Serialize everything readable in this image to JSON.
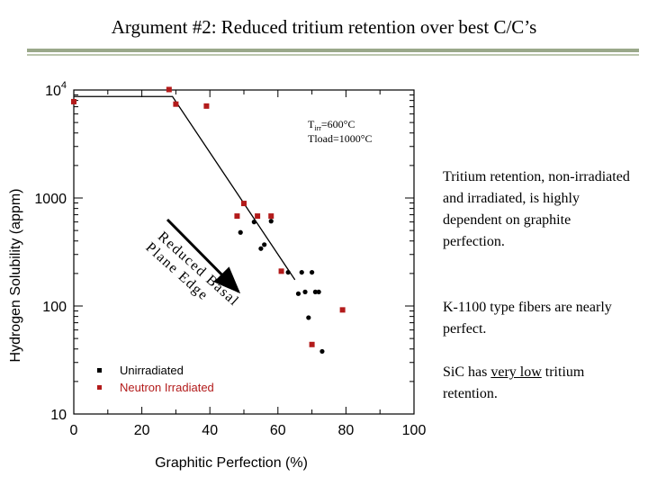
{
  "slide_title": "Argument #2: Reduced tritium retention over best C/C’s",
  "chart_data": {
    "type": "scatter",
    "xlabel": "Graphitic Perfection (%)",
    "ylabel": "Hydrogen Solubility (appm)",
    "xlim": [
      0,
      100
    ],
    "ylim": [
      10,
      10000
    ],
    "yscale": "log",
    "x_ticks": [
      "0",
      "20",
      "40",
      "60",
      "80",
      "100"
    ],
    "y_ticks": [
      {
        "value": 10,
        "label": "10"
      },
      {
        "value": 100,
        "label": "100"
      },
      {
        "value": 1000,
        "label": "1000"
      },
      {
        "value": 10000,
        "label": "10",
        "exponent": "4"
      }
    ],
    "conditions": {
      "line1_main": "T",
      "line1_sub": "irr",
      "line1_rest": "=600°C",
      "line2": "Tload=1000°C"
    },
    "legend_placement": "bottom-left",
    "series": [
      {
        "name": "Unirradiated",
        "color": "#000000",
        "points": [
          {
            "x": 49,
            "y": 480
          },
          {
            "x": 53,
            "y": 600
          },
          {
            "x": 55,
            "y": 340
          },
          {
            "x": 56,
            "y": 370
          },
          {
            "x": 58,
            "y": 610
          },
          {
            "x": 61,
            "y": 210
          },
          {
            "x": 63,
            "y": 205
          },
          {
            "x": 66,
            "y": 130
          },
          {
            "x": 67,
            "y": 205
          },
          {
            "x": 68,
            "y": 135
          },
          {
            "x": 69,
            "y": 78
          },
          {
            "x": 70,
            "y": 205
          },
          {
            "x": 71,
            "y": 135
          },
          {
            "x": 72,
            "y": 135
          },
          {
            "x": 73,
            "y": 38
          }
        ]
      },
      {
        "name": "Neutron Irradiated",
        "color": "#b31b1b",
        "points": [
          {
            "x": 0,
            "y": 7800
          },
          {
            "x": 28,
            "y": 10100
          },
          {
            "x": 30,
            "y": 7400
          },
          {
            "x": 39,
            "y": 7100
          },
          {
            "x": 48,
            "y": 680
          },
          {
            "x": 50,
            "y": 890
          },
          {
            "x": 54,
            "y": 680
          },
          {
            "x": 58,
            "y": 680
          },
          {
            "x": 61,
            "y": 210
          },
          {
            "x": 70,
            "y": 44
          },
          {
            "x": 79,
            "y": 92
          }
        ]
      }
    ],
    "trend_line": [
      {
        "x": 0,
        "y": 8700
      },
      {
        "x": 29,
        "y": 8700
      },
      {
        "x": 65,
        "y": 175
      }
    ],
    "annotation": {
      "line1": "Reduced Basal",
      "line2": "Plane Edge"
    }
  },
  "text_blocks": [
    "Tritium retention, non-irradiated and irradiated, is highly dependent on graphite perfection.",
    "K-1100 type fibers are nearly perfect."
  ],
  "sic_text": {
    "before": "SiC has ",
    "underlined": "very low",
    "after": " tritium retention."
  }
}
